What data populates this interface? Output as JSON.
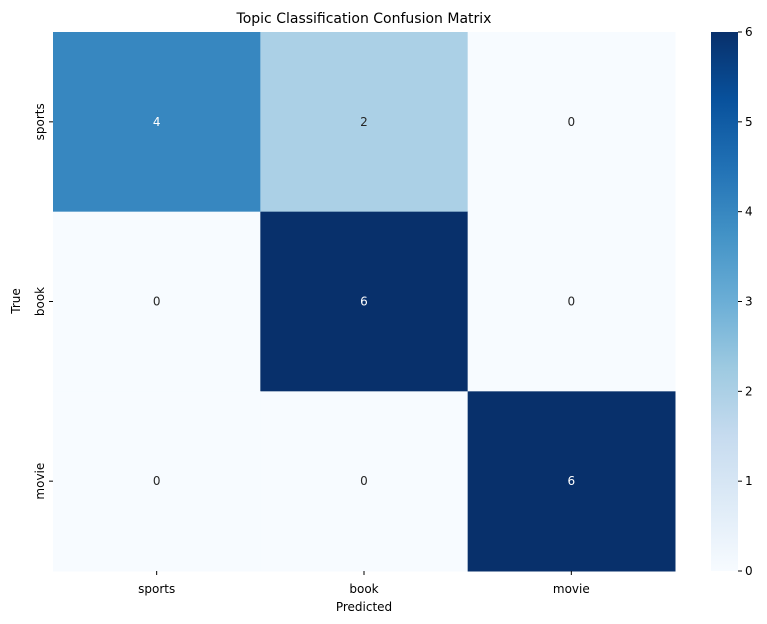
{
  "chart_data": {
    "type": "heatmap",
    "title": "Topic Classification Confusion Matrix",
    "xlabel": "Predicted",
    "ylabel": "True",
    "x_categories": [
      "sports",
      "book",
      "movie"
    ],
    "y_categories": [
      "sports",
      "book",
      "movie"
    ],
    "values": [
      [
        4,
        2,
        0
      ],
      [
        0,
        6,
        0
      ],
      [
        0,
        0,
        6
      ]
    ],
    "colorbar": {
      "min": 0,
      "max": 6,
      "ticks": [
        "0",
        "1",
        "2",
        "3",
        "4",
        "5",
        "6"
      ],
      "colormap": "Blues"
    },
    "colors": {
      "low": "#f7fbff",
      "high": "#08306b"
    }
  }
}
